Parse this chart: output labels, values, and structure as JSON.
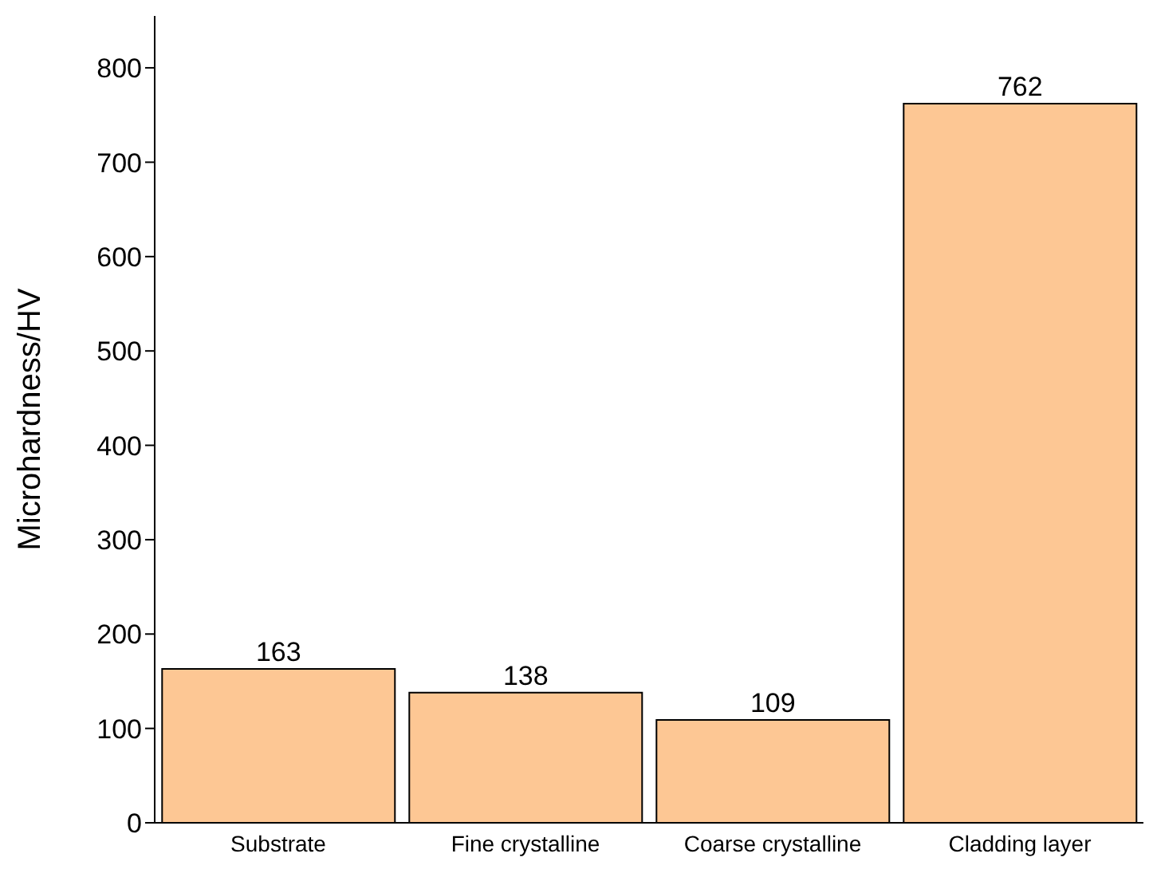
{
  "chart_data": {
    "type": "bar",
    "ylabel": "Microhardness/HV",
    "categories": [
      "Substrate",
      "Fine crystalline",
      "Coarse crystalline",
      "Cladding layer"
    ],
    "values": [
      163,
      138,
      109,
      762
    ],
    "color": "#fdc794",
    "ylim": [
      0,
      855
    ],
    "yticks": [
      0,
      100,
      200,
      300,
      400,
      500,
      600,
      700,
      800
    ],
    "grid": false,
    "data_labels": true
  }
}
